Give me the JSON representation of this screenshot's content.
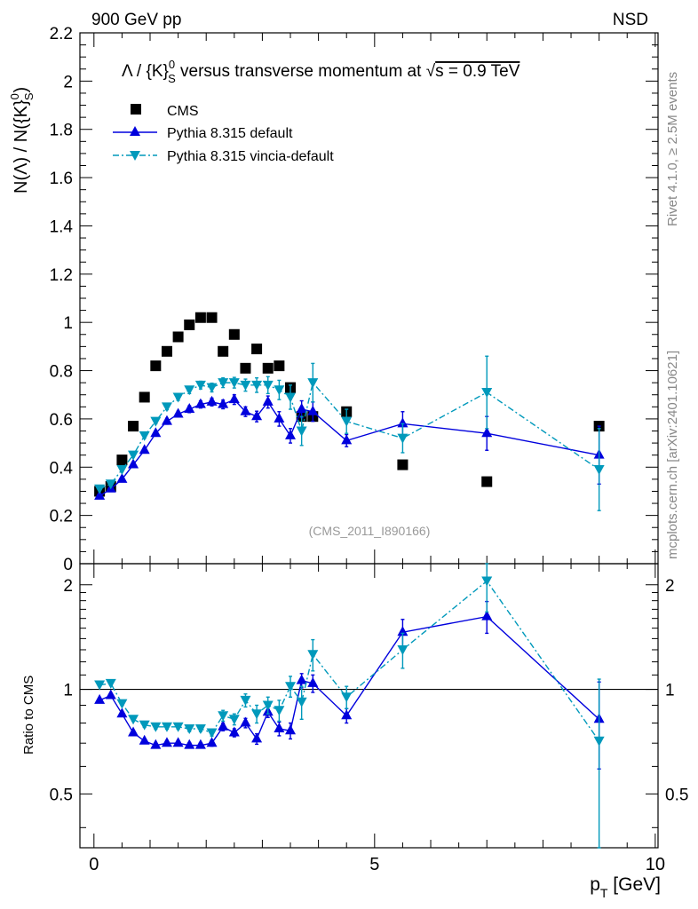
{
  "header": {
    "left": "900 GeV pp",
    "right": "NSD"
  },
  "side_labels": {
    "rivet": "Rivet 4.1.0, ≥ 2.5M events",
    "mcplots": "mcplots.cern.ch [arXiv:2401.10621]"
  },
  "reference": "(CMS_2011_I890166)",
  "colors": {
    "cms": "#000000",
    "pythia_default": "#0000dd",
    "pythia_vincia": "#0099bb"
  },
  "chart_data": [
    {
      "type": "scatter",
      "title": "Λ / {K}⁰_S versus transverse momentum at √s = 0.9 TeV",
      "title_parts": {
        "a": "Λ / {K}",
        "sup": "0",
        "sub": "S",
        "b": " versus transverse momentum at ",
        "sqrt": "√",
        "c": "s = 0.9 TeV"
      },
      "ylabel": "N(Λ)  /  N({K}⁰_S)",
      "ylabel_parts": {
        "a": "N(Λ)  /  N({K}",
        "sup": "0",
        "sub": "S",
        "b": ")"
      },
      "xlim": [
        -0.25,
        10.05
      ],
      "ylim": [
        0,
        2.2
      ],
      "ytick_labels": [
        "0",
        "0.2",
        "0.4",
        "0.6",
        "0.8",
        "1",
        "1.2",
        "1.4",
        "1.6",
        "1.8",
        "2",
        "2.2"
      ],
      "legend": [
        "CMS",
        "Pythia 8.315 default",
        "Pythia 8.315 vincia-default"
      ],
      "series": [
        {
          "name": "CMS",
          "marker": "square",
          "x": [
            0.1,
            0.3,
            0.5,
            0.7,
            0.9,
            1.1,
            1.3,
            1.5,
            1.7,
            1.9,
            2.1,
            2.3,
            2.5,
            2.7,
            2.9,
            3.1,
            3.3,
            3.5,
            3.7,
            3.9,
            4.5,
            5.5,
            7.0,
            9.0
          ],
          "y": [
            0.3,
            0.32,
            0.43,
            0.57,
            0.69,
            0.82,
            0.88,
            0.94,
            0.99,
            1.02,
            1.02,
            0.88,
            0.95,
            0.81,
            0.89,
            0.81,
            0.82,
            0.73,
            0.61,
            0.61,
            0.63,
            0.41,
            0.34,
            0.57
          ]
        },
        {
          "name": "Pythia 8.315 default",
          "marker": "triangle-up",
          "line": "solid",
          "x": [
            0.1,
            0.3,
            0.5,
            0.7,
            0.9,
            1.1,
            1.3,
            1.5,
            1.7,
            1.9,
            2.1,
            2.3,
            2.5,
            2.7,
            2.9,
            3.1,
            3.3,
            3.5,
            3.7,
            3.9,
            4.5,
            5.5,
            7.0,
            9.0
          ],
          "y": [
            0.28,
            0.31,
            0.35,
            0.41,
            0.47,
            0.54,
            0.59,
            0.62,
            0.64,
            0.66,
            0.67,
            0.66,
            0.68,
            0.63,
            0.61,
            0.67,
            0.6,
            0.53,
            0.64,
            0.63,
            0.51,
            0.58,
            0.54,
            0.45
          ],
          "err": [
            0.005,
            0.005,
            0.006,
            0.008,
            0.01,
            0.01,
            0.012,
            0.012,
            0.014,
            0.015,
            0.016,
            0.018,
            0.02,
            0.02,
            0.022,
            0.025,
            0.03,
            0.03,
            0.035,
            0.04,
            0.025,
            0.05,
            0.07,
            0.12
          ]
        },
        {
          "name": "Pythia 8.315 vincia-default",
          "marker": "triangle-down",
          "line": "dash-dot",
          "x": [
            0.1,
            0.3,
            0.5,
            0.7,
            0.9,
            1.1,
            1.3,
            1.5,
            1.7,
            1.9,
            2.1,
            2.3,
            2.5,
            2.7,
            2.9,
            3.1,
            3.3,
            3.5,
            3.7,
            3.9,
            4.5,
            5.5,
            7.0,
            9.0
          ],
          "y": [
            0.31,
            0.33,
            0.39,
            0.45,
            0.53,
            0.59,
            0.65,
            0.69,
            0.72,
            0.74,
            0.73,
            0.75,
            0.75,
            0.74,
            0.74,
            0.74,
            0.72,
            0.69,
            0.55,
            0.75,
            0.59,
            0.52,
            0.71,
            0.39
          ],
          "err": [
            0.005,
            0.005,
            0.007,
            0.008,
            0.01,
            0.01,
            0.012,
            0.013,
            0.015,
            0.016,
            0.018,
            0.02,
            0.022,
            0.025,
            0.03,
            0.035,
            0.04,
            0.05,
            0.06,
            0.08,
            0.05,
            0.06,
            0.15,
            0.17
          ]
        }
      ]
    },
    {
      "type": "scatter",
      "ylabel": "Ratio to CMS",
      "xlabel": "p_T [GeV]",
      "xlabel_parts": {
        "p": "p",
        "sub": "T",
        "unit": " [GeV]"
      },
      "xlim": [
        -0.25,
        10.05
      ],
      "ylim": [
        0.35,
        2.3
      ],
      "yscale": "log",
      "reference_line": 1,
      "xtick_labels": [
        "0",
        "5",
        "10"
      ],
      "ytick_labels": [
        "0.5",
        "1",
        "2"
      ],
      "series": [
        {
          "name": "Pythia 8.315 default",
          "marker": "triangle-up",
          "line": "solid",
          "x": [
            0.1,
            0.3,
            0.5,
            0.7,
            0.9,
            1.1,
            1.3,
            1.5,
            1.7,
            1.9,
            2.1,
            2.3,
            2.5,
            2.7,
            2.9,
            3.1,
            3.3,
            3.5,
            3.7,
            3.9,
            4.5,
            5.5,
            7.0,
            9.0
          ],
          "y": [
            0.93,
            0.96,
            0.85,
            0.75,
            0.71,
            0.69,
            0.7,
            0.7,
            0.69,
            0.69,
            0.7,
            0.78,
            0.75,
            0.8,
            0.72,
            0.86,
            0.77,
            0.76,
            1.06,
            1.04,
            0.84,
            1.46,
            1.62,
            0.82
          ],
          "err": [
            0.01,
            0.01,
            0.01,
            0.01,
            0.01,
            0.01,
            0.012,
            0.012,
            0.012,
            0.012,
            0.014,
            0.02,
            0.02,
            0.025,
            0.025,
            0.03,
            0.035,
            0.04,
            0.05,
            0.06,
            0.04,
            0.13,
            0.17,
            0.23
          ]
        },
        {
          "name": "Pythia 8.315 vincia-default",
          "marker": "triangle-down",
          "line": "dash-dot",
          "x": [
            0.1,
            0.3,
            0.5,
            0.7,
            0.9,
            1.1,
            1.3,
            1.5,
            1.7,
            1.9,
            2.1,
            2.3,
            2.5,
            2.7,
            2.9,
            3.1,
            3.3,
            3.5,
            3.7,
            3.9,
            4.5,
            5.5,
            7.0,
            9.0
          ],
          "y": [
            1.03,
            1.04,
            0.91,
            0.82,
            0.79,
            0.78,
            0.78,
            0.78,
            0.77,
            0.77,
            0.75,
            0.84,
            0.82,
            0.93,
            0.85,
            0.9,
            0.87,
            1.02,
            0.92,
            1.26,
            0.95,
            1.3,
            2.05,
            0.71
          ],
          "err": [
            0.01,
            0.01,
            0.01,
            0.01,
            0.012,
            0.012,
            0.012,
            0.012,
            0.014,
            0.014,
            0.016,
            0.03,
            0.03,
            0.04,
            0.05,
            0.05,
            0.06,
            0.07,
            0.1,
            0.13,
            0.07,
            0.15,
            0.38,
            0.36
          ]
        }
      ]
    }
  ]
}
